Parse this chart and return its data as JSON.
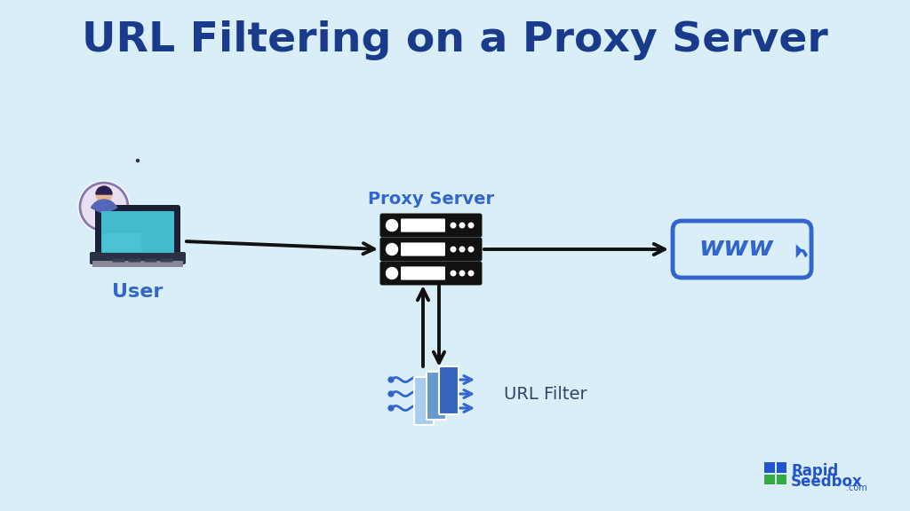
{
  "title": "URL Filtering on a Proxy Server",
  "title_color": "#1a3a8c",
  "title_fontsize": 34,
  "background_color": "#daeef8",
  "label_user": "User",
  "label_proxy": "Proxy Server",
  "label_www": "www",
  "label_filter": "URL Filter",
  "label_rapidseedbox": "RapidSeedbox",
  "label_com": ".com",
  "icon_color_dark": "#111111",
  "icon_color_blue": "#3366cc",
  "icon_color_mid_blue": "#4477dd",
  "icon_color_light_blue": "#6699ee",
  "icon_color_teal": "#44bbcc",
  "arrow_color": "#111111",
  "text_proxy_color": "#3366cc",
  "text_label_color": "#3366cc",
  "logo_blue": "#2255cc",
  "logo_green": "#33aa44"
}
